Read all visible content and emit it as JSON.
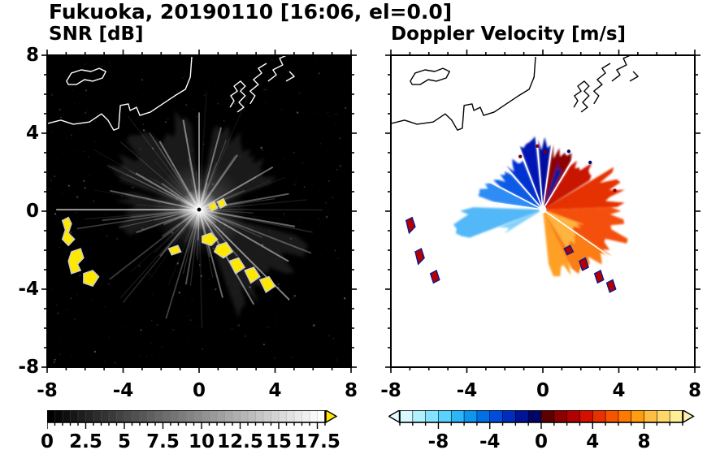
{
  "title": "Fukuoka, 20190110 [16:06, el=0.0]",
  "panels": {
    "left": {
      "subtitle": "SNR [dB]"
    },
    "right": {
      "subtitle": "Doppler Velocity [m/s]"
    }
  },
  "axes": {
    "xlim": [
      -8,
      8
    ],
    "ylim": [
      -8,
      8
    ],
    "major_ticks": [
      -8,
      -4,
      0,
      4,
      8
    ],
    "tick_labels": [
      "-8",
      "-4",
      "0",
      "4",
      "8"
    ],
    "minor_step": 1
  },
  "colorbars": {
    "snr": {
      "min": 0,
      "max": 18,
      "segment_step": 0.5,
      "minor_tick_step": 0.5,
      "tick_values": [
        0,
        2.5,
        5,
        7.5,
        10,
        12.5,
        15,
        17.5
      ],
      "tick_labels": [
        "0",
        "2.5",
        "5",
        "7.5",
        "10",
        "12.5",
        "15",
        "17.5"
      ],
      "scale": "grayscale-black-to-white",
      "over_arrow_color": "#ffe800"
    },
    "doppler": {
      "min": -11,
      "max": 11,
      "minor_tick_step": 1,
      "tick_values": [
        -8,
        -4,
        0,
        4,
        8
      ],
      "tick_labels": [
        "-8",
        "-4",
        "0",
        "4",
        "8"
      ],
      "under_arrow_color": "#e2fbff",
      "over_arrow_color": "#fff3ae",
      "colors": [
        "#d8faff",
        "#b0f0ff",
        "#84e4ff",
        "#58d2ff",
        "#2cb6fa",
        "#0c96f0",
        "#0070e8",
        "#004cdc",
        "#002cc0",
        "#001498",
        "#000668",
        "#5c0000",
        "#8c0000",
        "#b40000",
        "#d41000",
        "#e83000",
        "#f85400",
        "#ff7800",
        "#ff9c10",
        "#ffbe40",
        "#ffd868",
        "#ffee96"
      ]
    }
  },
  "map": {
    "coastline": [
      [
        [
          0,
          0.219
        ],
        [
          0.045,
          0.208
        ],
        [
          0.086,
          0.221
        ],
        [
          0.139,
          0.214
        ],
        [
          0.179,
          0.188
        ],
        [
          0.2,
          0.208
        ],
        [
          0.219,
          0.24
        ],
        [
          0.235,
          0.234
        ],
        [
          0.241,
          0.161
        ],
        [
          0.267,
          0.156
        ],
        [
          0.273,
          0.177
        ],
        [
          0.294,
          0.167
        ],
        [
          0.305,
          0.193
        ],
        [
          0.34,
          0.182
        ],
        [
          0.38,
          0.156
        ],
        [
          0.42,
          0.13
        ],
        [
          0.455,
          0.109
        ],
        [
          0.471,
          0.07
        ],
        [
          0.476,
          0.005
        ]
      ],
      [
        [
          0.602,
          0.167
        ],
        [
          0.615,
          0.146
        ],
        [
          0.604,
          0.13
        ],
        [
          0.626,
          0.115
        ],
        [
          0.615,
          0.099
        ],
        [
          0.636,
          0.083
        ],
        [
          0.652,
          0.099
        ],
        [
          0.636,
          0.115
        ],
        [
          0.652,
          0.13
        ],
        [
          0.631,
          0.151
        ],
        [
          0.647,
          0.167
        ],
        [
          0.626,
          0.182
        ]
      ],
      [
        [
          0.668,
          0.156
        ],
        [
          0.684,
          0.13
        ],
        [
          0.668,
          0.115
        ],
        [
          0.695,
          0.094
        ],
        [
          0.679,
          0.078
        ],
        [
          0.706,
          0.057
        ],
        [
          0.695,
          0.042
        ],
        [
          0.722,
          0.026
        ]
      ],
      [
        [
          0.727,
          0.083
        ],
        [
          0.754,
          0.063
        ],
        [
          0.743,
          0.047
        ],
        [
          0.775,
          0.031
        ],
        [
          0.765,
          0.01
        ],
        [
          0.786,
          0.001
        ]
      ],
      [
        [
          0.786,
          0.083
        ],
        [
          0.813,
          0.068
        ],
        [
          0.797,
          0.052
        ]
      ]
    ],
    "island": [
      [
        0.064,
        0.083
      ],
      [
        0.08,
        0.057
      ],
      [
        0.112,
        0.047
      ],
      [
        0.144,
        0.052
      ],
      [
        0.171,
        0.042
      ],
      [
        0.193,
        0.052
      ],
      [
        0.182,
        0.073
      ],
      [
        0.15,
        0.083
      ],
      [
        0.123,
        0.078
      ],
      [
        0.096,
        0.094
      ],
      [
        0.07,
        0.094
      ]
    ]
  },
  "chart_data": [
    {
      "type": "heatmap",
      "panel_title": "SNR [dB]",
      "site": "Fukuoka",
      "date": "20190110",
      "time": "16:06",
      "elevation": 0.0,
      "xlim": [
        -8,
        8
      ],
      "ylim": [
        -8,
        8
      ],
      "xticks": [
        -8,
        -4,
        0,
        4,
        8
      ],
      "yticks": [
        -8,
        -4,
        0,
        4,
        8
      ],
      "colorbar_range_dB": [
        0,
        17.5
      ],
      "colorbar_ticks": [
        0,
        2.5,
        5,
        7.5,
        10,
        12.5,
        15,
        17.5
      ],
      "description": "PPI radar scan on black background: white radial beam streaks and a bright glow centered at the radar site (0,0); white coastline of the bay across the upper part; yellow high-SNR ground-clutter patches to the lower-left and along an arc to the south-east of the radar.",
      "style": {
        "background": "#000000",
        "coast_color": "#ffffff",
        "center": [
          0.5,
          0.495
        ],
        "seed": 20190110,
        "streak_count": 85,
        "noise_dots": 330,
        "bright_rays": [
          [
            180,
            0.47,
            0.6
          ],
          [
            168,
            0.3,
            0.35
          ],
          [
            150,
            0.24,
            0.35
          ],
          [
            120,
            0.26,
            0.4
          ],
          [
            100,
            0.3,
            0.45
          ],
          [
            90,
            0.32,
            0.5
          ],
          [
            75,
            0.28,
            0.4
          ],
          [
            55,
            0.22,
            0.35
          ],
          [
            30,
            0.28,
            0.4
          ],
          [
            10,
            0.3,
            0.35
          ],
          [
            -10,
            0.32,
            0.4
          ],
          [
            -30,
            0.34,
            0.45
          ],
          [
            -45,
            0.42,
            0.5
          ],
          [
            -60,
            0.36,
            0.45
          ],
          [
            -75,
            0.3,
            0.4
          ],
          [
            -100,
            0.25,
            0.3
          ],
          [
            -130,
            0.2,
            0.25
          ],
          [
            -160,
            0.22,
            0.3
          ]
        ],
        "haze_sectors": [
          [
            95,
            160,
            0.3
          ],
          [
            20,
            80,
            0.28
          ],
          [
            -70,
            -15,
            0.34
          ],
          [
            165,
            200,
            0.25
          ]
        ],
        "patch_fill": "#ffe800",
        "patch_stroke": "#cccccc",
        "patches": [
          "M5,53 L7,52 L8,54 L7,57 L9,59 L7,61 L5,59 L6,56 Z",
          "M8,63 L11,62 L12,65 L10,67 L11,69 L8,70 L7,66 Z",
          "M12,70 L15,69 L17,71 L15,74 L12,73 Z",
          "M40,62 L43,61 L44,63 L41,64 Z",
          "M51,58 L54,57 L56,59 L54,61 L51,60 Z",
          "M56,61 L59,60 L61,63 L58,65 L55,63 Z",
          "M60,66 L63,65 L65,68 L62,70 Z",
          "M65,69 L68,68 L70,71 L67,73 Z",
          "M70,72 L73,71 L75,74 L72,76 Z",
          "M53,48 L55,47 L56,49 L54,50 Z",
          "M56,47 L58,46 L59,48 L57,49 Z"
        ]
      }
    },
    {
      "type": "heatmap",
      "panel_title": "Doppler Velocity [m/s]",
      "site": "Fukuoka",
      "date": "20190110",
      "time": "16:06",
      "elevation": 0.0,
      "xlim": [
        -8,
        8
      ],
      "ylim": [
        -8,
        8
      ],
      "xticks": [
        -8,
        -4,
        0,
        4,
        8
      ],
      "yticks": [
        -8,
        -4,
        0,
        4,
        8
      ],
      "colorbar_range_ms": [
        -11,
        11
      ],
      "colorbar_ticks": [
        -8,
        -4,
        0,
        4,
        8
      ],
      "description": "Doppler velocity fan on white background centered at the radar site (0,0): negative velocities (cyan-blue-navy) toward the north and west-northwest, positive velocities (dark red-red-orange-yellow) toward the east and south-east; black coastline across the top; small red/navy clutter flecks to the lower-left and along the south-east arc.",
      "style": {
        "background": "#ffffff",
        "coast_color": "#000000",
        "center": [
          0.5,
          0.495
        ],
        "seed": 16061,
        "wedges": [
          {
            "a0": 83,
            "a1": 94,
            "r": 0.215,
            "color": "#000fa0"
          },
          {
            "a0": 96,
            "a1": 110,
            "r": 0.22,
            "color": "#0018b4"
          },
          {
            "a0": 112,
            "a1": 130,
            "r": 0.19,
            "color": "#0030d2"
          },
          {
            "a0": 132,
            "a1": 152,
            "r": 0.17,
            "color": "#0a5ae6"
          },
          {
            "a0": 153,
            "a1": 171,
            "r": 0.2,
            "color": "#2f8cf5"
          },
          {
            "a0": 178,
            "a1": 201,
            "r": 0.27,
            "color": "#52b8f7"
          },
          {
            "a0": 202,
            "a1": 212,
            "r": 0.14,
            "color": "#86d2fa"
          },
          {
            "a0": 60,
            "a1": 81,
            "r": 0.2,
            "color": "#8c0000"
          },
          {
            "a0": 64,
            "a1": 72,
            "r": 0.16,
            "color": "#001a9c"
          },
          {
            "a0": 32,
            "a1": 58,
            "r": 0.2,
            "color": "#c81400"
          },
          {
            "a0": 2,
            "a1": 31,
            "r": 0.25,
            "color": "#e63000"
          },
          {
            "a0": -34,
            "a1": 2,
            "r": 0.27,
            "color": "#f5500c"
          },
          {
            "a0": -64,
            "a1": -34,
            "r": 0.26,
            "color": "#fa7d14"
          },
          {
            "a0": -84,
            "a1": -64,
            "r": 0.22,
            "color": "#ffa028"
          },
          {
            "a0": -58,
            "a1": -20,
            "r": 0.14,
            "color": "#ffb440"
          }
        ],
        "gap_beams": [
          95,
          111,
          131,
          152.5,
          172,
          82,
          59,
          -35
        ],
        "specks": [
          [
            88,
            0.19,
            "#780000"
          ],
          [
            95,
            0.21,
            "#8c0000"
          ],
          [
            113,
            0.19,
            "#780000"
          ],
          [
            66,
            0.21,
            "#001080"
          ],
          [
            45,
            0.22,
            "#001080"
          ],
          [
            15,
            0.245,
            "#8c0000"
          ]
        ],
        "fleck_fill": "#b40000",
        "fleck_stroke": "#001a99",
        "flecks": [
          "M5,53 L7,52 L8,55 L6,57 Z",
          "M8,63 L10,62 L11,65 L9,67 Z",
          "M13,70 L15,69 L16,72 L14,73 Z",
          "M57,62 L59,61 L60,63 L58,64 Z",
          "M62,66 L64,65 L65,68 L63,69 Z",
          "M67,70 L69,69 L70,72 L68,73 Z",
          "M71,73 L73,72 L74,75 L72,76 Z"
        ]
      }
    }
  ]
}
